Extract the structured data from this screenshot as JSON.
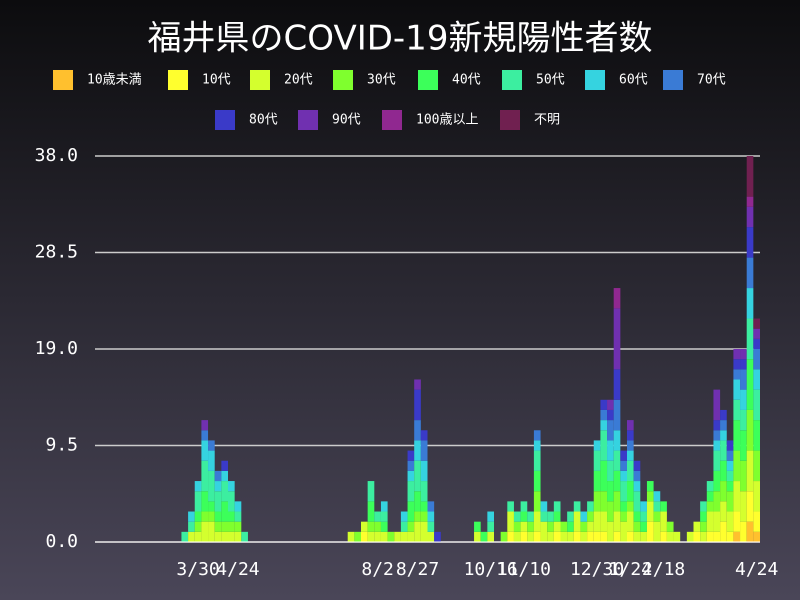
{
  "chart_data": {
    "type": "stacked_bar",
    "title": "福井県のCOVID-19新規陽性者数",
    "categories": [
      null,
      null,
      null,
      null,
      null,
      null,
      null,
      null,
      null,
      null,
      null,
      null,
      null,
      null,
      null,
      "3/30",
      null,
      null,
      null,
      null,
      null,
      "4/24",
      null,
      null,
      null,
      null,
      null,
      null,
      null,
      null,
      null,
      null,
      null,
      null,
      null,
      null,
      null,
      null,
      null,
      null,
      null,
      null,
      "8/2",
      null,
      null,
      null,
      null,
      null,
      "8/27",
      null,
      null,
      null,
      null,
      null,
      null,
      null,
      null,
      null,
      null,
      "10/16",
      null,
      null,
      null,
      null,
      "11/10",
      null,
      null,
      null,
      null,
      null,
      null,
      null,
      null,
      null,
      null,
      "12/30",
      null,
      null,
      null,
      null,
      "1/24",
      null,
      null,
      null,
      null,
      "2/18",
      null,
      null,
      null,
      null,
      null,
      null,
      null,
      null,
      null,
      null,
      null,
      null,
      null,
      "4/24"
    ],
    "ylim": [
      0,
      38
    ],
    "yticks": [
      {
        "value": 0,
        "label": "0.0"
      },
      9.5,
      {
        "value": 19,
        "label": "19.0"
      },
      28.5,
      {
        "value": 38,
        "label": "38.0"
      }
    ],
    "grid": true,
    "series": [
      {
        "name": "10歳未満",
        "color": "#ffc02e",
        "values": [
          0,
          0,
          0,
          0,
          0,
          0,
          0,
          0,
          0,
          0,
          0,
          0,
          0,
          0,
          0,
          0,
          0,
          0,
          0,
          0,
          0,
          0,
          0,
          0,
          0,
          0,
          0,
          0,
          0,
          0,
          0,
          0,
          0,
          0,
          0,
          0,
          0,
          0,
          0,
          0,
          0,
          0,
          0,
          0,
          0,
          0,
          0,
          0,
          0,
          0,
          0,
          0,
          0,
          0,
          0,
          0,
          0,
          0,
          0,
          0,
          0,
          0,
          0,
          0,
          0,
          0,
          0,
          0,
          0,
          0,
          0,
          0,
          0,
          0,
          0,
          0,
          0,
          0,
          0,
          0,
          0,
          0,
          0,
          0,
          0,
          0,
          0,
          0,
          0,
          0,
          0,
          0,
          0,
          0,
          0,
          0,
          1,
          0,
          2,
          1
        ]
      },
      {
        "name": "10代",
        "color": "#ffff2e",
        "values": [
          0,
          0,
          0,
          0,
          0,
          0,
          0,
          0,
          0,
          0,
          0,
          0,
          0,
          0,
          0,
          0,
          0,
          0,
          0,
          0,
          0,
          0,
          0,
          0,
          0,
          0,
          0,
          0,
          0,
          0,
          0,
          0,
          0,
          0,
          0,
          0,
          0,
          0,
          0,
          0,
          1,
          0,
          0,
          0,
          0,
          0,
          0,
          0,
          0,
          0,
          0,
          0,
          0,
          0,
          0,
          0,
          0,
          0,
          0,
          0,
          0,
          0,
          1,
          0,
          1,
          0,
          1,
          0,
          0,
          1,
          0,
          0,
          1,
          0,
          1,
          1,
          1,
          0,
          1,
          0,
          1,
          0,
          0,
          2,
          0,
          1,
          0,
          0,
          0,
          0,
          1,
          0,
          1,
          1,
          2,
          1,
          2,
          2,
          3,
          2
        ]
      },
      {
        "name": "20代",
        "color": "#d4ff2e",
        "values": [
          0,
          0,
          0,
          0,
          0,
          0,
          0,
          0,
          0,
          0,
          0,
          0,
          0,
          0,
          1,
          1,
          2,
          2,
          1,
          1,
          1,
          1,
          0,
          0,
          0,
          0,
          0,
          0,
          0,
          0,
          0,
          0,
          0,
          0,
          0,
          0,
          0,
          0,
          1,
          0,
          1,
          1,
          1,
          1,
          0,
          1,
          1,
          1,
          2,
          2,
          1,
          0,
          0,
          0,
          0,
          0,
          0,
          1,
          0,
          1,
          0,
          0,
          2,
          1,
          1,
          1,
          2,
          2,
          1,
          1,
          1,
          1,
          2,
          1,
          1,
          2,
          2,
          2,
          2,
          2,
          2,
          1,
          1,
          2,
          2,
          2,
          1,
          1,
          0,
          1,
          1,
          1,
          2,
          2,
          2,
          2,
          3,
          3,
          4,
          3
        ]
      },
      {
        "name": "30代",
        "color": "#7fff2e",
        "values": [
          0,
          0,
          0,
          0,
          0,
          0,
          0,
          0,
          0,
          0,
          0,
          0,
          0,
          0,
          0,
          1,
          1,
          1,
          1,
          1,
          1,
          1,
          0,
          0,
          0,
          0,
          0,
          0,
          0,
          0,
          0,
          0,
          0,
          0,
          0,
          0,
          0,
          0,
          0,
          1,
          0,
          1,
          1,
          0,
          1,
          0,
          0,
          1,
          1,
          1,
          0,
          0,
          0,
          0,
          0,
          0,
          0,
          0,
          0,
          0,
          0,
          1,
          0,
          1,
          0,
          1,
          2,
          0,
          1,
          0,
          1,
          0,
          0,
          1,
          1,
          2,
          2,
          2,
          2,
          1,
          1,
          1,
          0,
          1,
          1,
          0,
          1,
          0,
          0,
          0,
          0,
          1,
          1,
          2,
          2,
          2,
          3,
          3,
          4,
          3
        ]
      },
      {
        "name": "40代",
        "color": "#3cff5a",
        "values": [
          0,
          0,
          0,
          0,
          0,
          0,
          0,
          0,
          0,
          0,
          0,
          0,
          0,
          0,
          0,
          1,
          2,
          1,
          1,
          2,
          1,
          0,
          0,
          0,
          0,
          0,
          0,
          0,
          0,
          0,
          0,
          0,
          0,
          0,
          0,
          0,
          0,
          0,
          0,
          0,
          0,
          2,
          0,
          1,
          0,
          0,
          0,
          2,
          2,
          1,
          0,
          0,
          0,
          0,
          0,
          0,
          0,
          1,
          1,
          0,
          0,
          0,
          0,
          0,
          1,
          0,
          2,
          0,
          0,
          1,
          0,
          1,
          0,
          0,
          0,
          2,
          3,
          2,
          2,
          1,
          2,
          1,
          1,
          1,
          0,
          1,
          0,
          0,
          0,
          0,
          0,
          1,
          1,
          2,
          2,
          1,
          3,
          3,
          5,
          3
        ]
      },
      {
        "name": "50代",
        "color": "#3ceea0",
        "values": [
          0,
          0,
          0,
          0,
          0,
          0,
          0,
          0,
          0,
          0,
          0,
          0,
          0,
          1,
          1,
          2,
          3,
          3,
          2,
          2,
          2,
          1,
          1,
          0,
          0,
          0,
          0,
          0,
          0,
          0,
          0,
          0,
          0,
          0,
          0,
          0,
          0,
          0,
          0,
          0,
          0,
          2,
          1,
          1,
          0,
          0,
          1,
          2,
          3,
          2,
          1,
          0,
          0,
          0,
          0,
          0,
          0,
          0,
          0,
          1,
          0,
          0,
          1,
          1,
          1,
          1,
          2,
          1,
          1,
          1,
          0,
          1,
          1,
          0,
          1,
          2,
          3,
          2,
          2,
          2,
          2,
          2,
          1,
          0,
          1,
          0,
          0,
          0,
          0,
          0,
          0,
          1,
          1,
          2,
          2,
          1,
          2,
          2,
          4,
          3
        ]
      },
      {
        "name": "60代",
        "color": "#35d3e0",
        "values": [
          0,
          0,
          0,
          0,
          0,
          0,
          0,
          0,
          0,
          0,
          0,
          0,
          0,
          0,
          1,
          1,
          2,
          2,
          1,
          1,
          1,
          1,
          0,
          0,
          0,
          0,
          0,
          0,
          0,
          0,
          0,
          0,
          0,
          0,
          0,
          0,
          0,
          0,
          0,
          0,
          0,
          0,
          0,
          1,
          0,
          0,
          1,
          1,
          2,
          2,
          1,
          0,
          0,
          0,
          0,
          0,
          0,
          0,
          0,
          1,
          0,
          0,
          0,
          0,
          0,
          0,
          1,
          1,
          0,
          0,
          0,
          0,
          0,
          1,
          0,
          1,
          1,
          2,
          2,
          1,
          1,
          1,
          1,
          0,
          1,
          0,
          0,
          0,
          0,
          0,
          0,
          0,
          0,
          1,
          1,
          1,
          2,
          2,
          3,
          2
        ]
      },
      {
        "name": "70代",
        "color": "#3a7bd5",
        "values": [
          0,
          0,
          0,
          0,
          0,
          0,
          0,
          0,
          0,
          0,
          0,
          0,
          0,
          0,
          0,
          0,
          1,
          1,
          1,
          0,
          0,
          0,
          0,
          0,
          0,
          0,
          0,
          0,
          0,
          0,
          0,
          0,
          0,
          0,
          0,
          0,
          0,
          0,
          0,
          0,
          0,
          0,
          0,
          0,
          0,
          0,
          0,
          1,
          2,
          2,
          1,
          0,
          0,
          0,
          0,
          0,
          0,
          0,
          0,
          0,
          0,
          0,
          0,
          0,
          0,
          0,
          1,
          0,
          0,
          0,
          0,
          0,
          0,
          0,
          0,
          0,
          1,
          2,
          3,
          1,
          1,
          1,
          0,
          0,
          0,
          0,
          0,
          0,
          0,
          0,
          0,
          0,
          0,
          1,
          1,
          1,
          1,
          2,
          3,
          2
        ]
      },
      {
        "name": "80代",
        "color": "#3a3ac8",
        "values": [
          0,
          0,
          0,
          0,
          0,
          0,
          0,
          0,
          0,
          0,
          0,
          0,
          0,
          0,
          0,
          0,
          0,
          0,
          0,
          1,
          0,
          0,
          0,
          0,
          0,
          0,
          0,
          0,
          0,
          0,
          0,
          0,
          0,
          0,
          0,
          0,
          0,
          0,
          0,
          0,
          0,
          0,
          0,
          0,
          0,
          0,
          0,
          1,
          3,
          1,
          0,
          1,
          0,
          0,
          0,
          0,
          0,
          0,
          0,
          0,
          0,
          0,
          0,
          0,
          0,
          0,
          0,
          0,
          0,
          0,
          0,
          0,
          0,
          0,
          0,
          0,
          1,
          1,
          3,
          1,
          1,
          1,
          0,
          0,
          0,
          0,
          0,
          0,
          0,
          0,
          0,
          0,
          0,
          1,
          1,
          1,
          1,
          1,
          3,
          1
        ]
      },
      {
        "name": "90代",
        "color": "#7030b0",
        "values": [
          0,
          0,
          0,
          0,
          0,
          0,
          0,
          0,
          0,
          0,
          0,
          0,
          0,
          0,
          0,
          0,
          1,
          0,
          0,
          0,
          0,
          0,
          0,
          0,
          0,
          0,
          0,
          0,
          0,
          0,
          0,
          0,
          0,
          0,
          0,
          0,
          0,
          0,
          0,
          0,
          0,
          0,
          0,
          0,
          0,
          0,
          0,
          0,
          1,
          0,
          0,
          0,
          0,
          0,
          0,
          0,
          0,
          0,
          0,
          0,
          0,
          0,
          0,
          0,
          0,
          0,
          0,
          0,
          0,
          0,
          0,
          0,
          0,
          0,
          0,
          0,
          0,
          1,
          6,
          0,
          1,
          0,
          0,
          0,
          0,
          0,
          0,
          0,
          0,
          0,
          0,
          0,
          0,
          3,
          0,
          0,
          1,
          1,
          2,
          1
        ]
      },
      {
        "name": "100歳以上",
        "color": "#902890",
        "values": [
          0,
          0,
          0,
          0,
          0,
          0,
          0,
          0,
          0,
          0,
          0,
          0,
          0,
          0,
          0,
          0,
          0,
          0,
          0,
          0,
          0,
          0,
          0,
          0,
          0,
          0,
          0,
          0,
          0,
          0,
          0,
          0,
          0,
          0,
          0,
          0,
          0,
          0,
          0,
          0,
          0,
          0,
          0,
          0,
          0,
          0,
          0,
          0,
          0,
          0,
          0,
          0,
          0,
          0,
          0,
          0,
          0,
          0,
          0,
          0,
          0,
          0,
          0,
          0,
          0,
          0,
          0,
          0,
          0,
          0,
          0,
          0,
          0,
          0,
          0,
          0,
          0,
          0,
          2,
          0,
          0,
          0,
          0,
          0,
          0,
          0,
          0,
          0,
          0,
          0,
          0,
          0,
          0,
          0,
          0,
          0,
          0,
          0,
          1,
          0
        ]
      },
      {
        "name": "不明",
        "color": "#702050",
        "values": [
          0,
          0,
          0,
          0,
          0,
          0,
          0,
          0,
          0,
          0,
          0,
          0,
          0,
          0,
          0,
          0,
          0,
          0,
          0,
          0,
          0,
          0,
          0,
          0,
          0,
          0,
          0,
          0,
          0,
          0,
          0,
          0,
          0,
          0,
          0,
          0,
          0,
          0,
          0,
          0,
          0,
          0,
          0,
          0,
          0,
          0,
          0,
          0,
          0,
          0,
          0,
          0,
          0,
          0,
          0,
          0,
          0,
          0,
          0,
          0,
          0,
          0,
          0,
          0,
          0,
          0,
          0,
          0,
          0,
          0,
          0,
          0,
          0,
          0,
          0,
          0,
          0,
          0,
          0,
          0,
          0,
          0,
          0,
          0,
          0,
          0,
          0,
          0,
          0,
          0,
          0,
          0,
          0,
          0,
          0,
          0,
          0,
          0,
          4,
          1
        ]
      }
    ]
  }
}
